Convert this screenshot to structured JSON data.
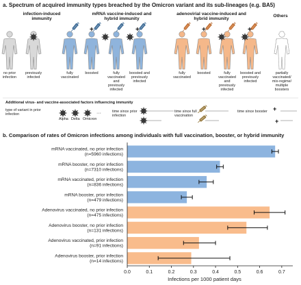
{
  "panel_a": {
    "title": "a. Spectrum of acquired immunity types breached by the Omicron variant and its sub-lineages (e.g. BA5)",
    "groups": {
      "infection": "infection-induced immunity",
      "mrna": "mRNA vaccine-induced and hybrid immunity",
      "adeno": "adenovirial vaccine-induced and hybrid immunity",
      "others": "Others"
    },
    "figures": [
      {
        "label": "no prior infection",
        "color": "#d9d9d9"
      },
      {
        "label": "previously infected",
        "color": "#d9d9d9"
      },
      {
        "label": "fully vaccinated",
        "color": "#8fb4dc"
      },
      {
        "label": "boosted",
        "color": "#8fb4dc"
      },
      {
        "label": "fully vaccinated and previously infected",
        "color": "#8fb4dc"
      },
      {
        "label": "boosted and previously infected",
        "color": "#8fb4dc"
      },
      {
        "label": "fully vaccinated",
        "color": "#f5b88a"
      },
      {
        "label": "boosted",
        "color": "#f5b88a"
      },
      {
        "label": "fully vaccinated and previously infected",
        "color": "#f5b88a"
      },
      {
        "label": "boosted and previously infected",
        "color": "#f5b88a"
      },
      {
        "label": "partially vaccinated/ mix-regime/ multiple boosters",
        "color": "#ffffff"
      }
    ],
    "additional_title": "Additional virus- and vaccine-associated factors influencing immunity",
    "variant_type_label": "type of variant in prior infection",
    "variants": [
      "Alpha",
      "Delta",
      "Omicron"
    ],
    "time_labels": [
      "time since prior infection",
      "time since full vaccination",
      "time since booster"
    ]
  },
  "panel_b": {
    "title": "b. Comparison of rates of Omicron infections among individuals with full vaccination, booster, or hybrid immunity"
  },
  "chart_data": {
    "type": "bar",
    "orientation": "horizontal",
    "categories": [
      "mRNA vaccinated, no prior infection\n(n=5960 infections)",
      "mRNA booster, no prior infection\n(n=7310 infections)",
      "mRNA vaccinated, prior infection\n(n=836 infections)",
      "mRNA booster, prior infection\n(n=479 infections)",
      "Adenovirus vaccinated, no prior infection\n(n=475 infections)",
      "Adenovirus booster, no prior infection\n(n=131 infections)",
      "Adenovirus vaccinated, prior infection\n(n=91 infections)",
      "Adenovirus booster, prior infection\n(n=14 infections)"
    ],
    "values": [
      0.67,
      0.42,
      0.36,
      0.27,
      0.645,
      0.54,
      0.325,
      0.29
    ],
    "error_low": [
      0.655,
      0.405,
      0.325,
      0.245,
      0.575,
      0.455,
      0.255,
      0.14
    ],
    "error_high": [
      0.685,
      0.435,
      0.39,
      0.295,
      0.715,
      0.635,
      0.4,
      0.465
    ],
    "bar_colors": [
      "#8db4df",
      "#8db4df",
      "#8db4df",
      "#8db4df",
      "#f9bc8c",
      "#f9bc8c",
      "#f9bc8c",
      "#f9bc8c"
    ],
    "xlabel": "Infections per 1000 patient days",
    "xlim": [
      0,
      0.75
    ],
    "xticks": [
      0.0,
      0.1,
      0.2,
      0.3,
      0.4,
      0.5,
      0.6,
      0.7
    ],
    "xtick_labels": [
      "0.0",
      "0.1",
      "0.2",
      "0.3",
      "0.4",
      "0.5",
      "0.6",
      "0.7"
    ],
    "grid": false
  }
}
